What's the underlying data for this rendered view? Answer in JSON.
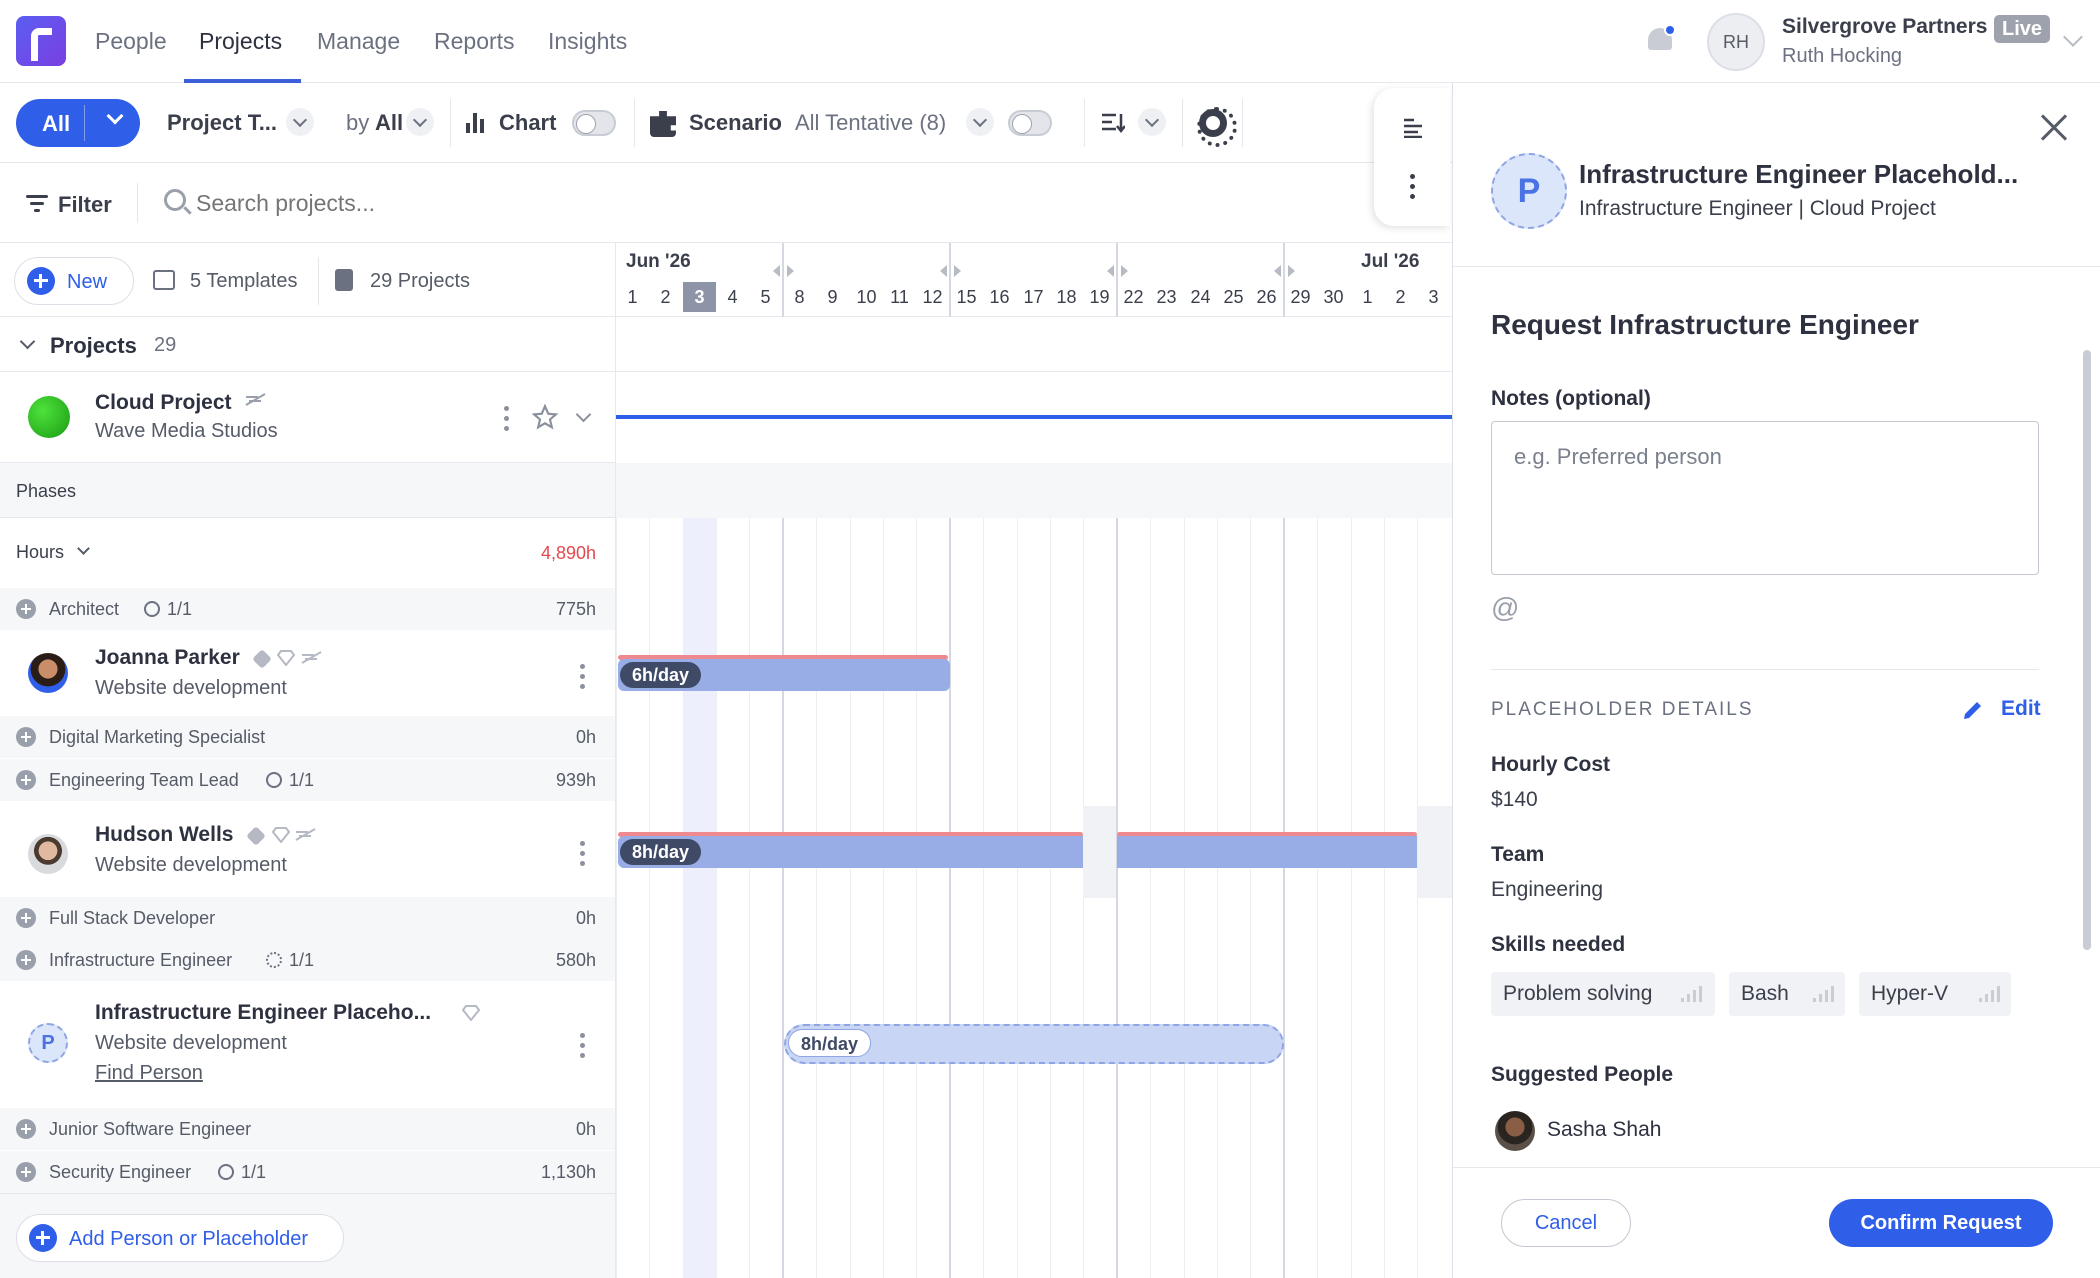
{
  "nav": {
    "tabs": [
      "People",
      "Projects",
      "Manage",
      "Reports",
      "Insights"
    ],
    "active": "Projects",
    "org_name": "Silvergrove Partners",
    "live_badge": "Live",
    "user_name": "Ruth Hocking",
    "user_initials": "RH"
  },
  "toolbar": {
    "view_all": "All",
    "project_type": "Project T...",
    "by_label": "by",
    "by_value": "All",
    "chart_label": "Chart",
    "scenario_label": "Scenario",
    "scenario_value": "All Tentative (8)"
  },
  "filter": {
    "label": "Filter",
    "search_placeholder": "Search projects..."
  },
  "templates_row": {
    "new_label": "New",
    "templates": "5 Templates",
    "projects": "29 Projects"
  },
  "calendar": {
    "months": [
      "Jun '26",
      "Jul '26"
    ],
    "days": [
      "1",
      "2",
      "3",
      "4",
      "5",
      "8",
      "9",
      "10",
      "11",
      "12",
      "15",
      "16",
      "17",
      "18",
      "19",
      "22",
      "23",
      "24",
      "25",
      "26",
      "29",
      "30",
      "1",
      "2",
      "3"
    ],
    "today": "3"
  },
  "projects_group": {
    "label": "Projects",
    "count": "29"
  },
  "project": {
    "name": "Cloud Project",
    "client": "Wave Media Studios",
    "status_color": "#22a61c"
  },
  "phases_label": "Phases",
  "hours": {
    "label": "Hours",
    "total": "4,890h",
    "total_color": "#e5484d"
  },
  "rows": [
    {
      "type": "role",
      "name": "Architect",
      "fill": "1/1",
      "hours": "775h"
    },
    {
      "type": "person",
      "name": "Joanna Parker",
      "sub": "Website development",
      "bar_label": "6h/day"
    },
    {
      "type": "role",
      "name": "Digital Marketing Specialist",
      "fill": "",
      "hours": "0h"
    },
    {
      "type": "role",
      "name": "Engineering Team Lead",
      "fill": "1/1",
      "hours": "939h"
    },
    {
      "type": "person",
      "name": "Hudson Wells",
      "sub": "Website development",
      "bar_label": "8h/day"
    },
    {
      "type": "role",
      "name": "Full Stack Developer",
      "fill": "",
      "hours": "0h"
    },
    {
      "type": "role",
      "name": "Infrastructure Engineer",
      "fill": "1/1",
      "hours": "580h"
    },
    {
      "type": "placeholder",
      "name": "Infrastructure Engineer Placeho...",
      "sub": "Website development",
      "link": "Find Person",
      "bar_label": "8h/day"
    },
    {
      "type": "role",
      "name": "Junior Software Engineer",
      "fill": "",
      "hours": "0h"
    },
    {
      "type": "role",
      "name": "Security Engineer",
      "fill": "1/1",
      "hours": "1,130h"
    }
  ],
  "add_person_label": "Add Person or Placeholder",
  "panel": {
    "avatar_letter": "P",
    "title": "Infrastructure Engineer Placehold...",
    "subtitle": "Infrastructure Engineer | Cloud Project",
    "request_title": "Request Infrastructure Engineer",
    "notes_label": "Notes (optional)",
    "notes_placeholder": "e.g. Preferred person",
    "mention_icon": "@",
    "details_heading": "PLACEHOLDER DETAILS",
    "edit_label": "Edit",
    "hourly_cost_label": "Hourly Cost",
    "hourly_cost_value": "$140",
    "team_label": "Team",
    "team_value": "Engineering",
    "skills_label": "Skills needed",
    "skills": [
      "Problem solving",
      "Bash",
      "Hyper-V"
    ],
    "suggested_label": "Suggested People",
    "suggested_person": "Sasha Shah",
    "cancel_label": "Cancel",
    "confirm_label": "Confirm Request"
  },
  "colors": {
    "accent": "#2f5ee8",
    "bar": "#98ade6",
    "bar_overbooked": "#ee8a8f",
    "project_line": "#2f5ee8"
  }
}
